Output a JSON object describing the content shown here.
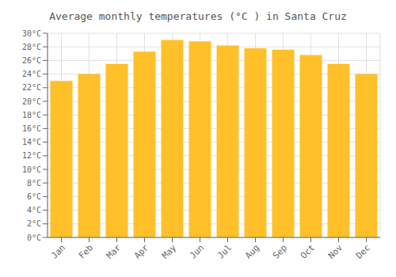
{
  "chart_data": {
    "type": "bar",
    "title": "Average monthly temperatures (°C ) in Santa Cruz",
    "categories": [
      "Jan",
      "Feb",
      "Mar",
      "Apr",
      "May",
      "Jun",
      "Jul",
      "Aug",
      "Sep",
      "Oct",
      "Nov",
      "Dec"
    ],
    "values": [
      23.0,
      24.0,
      25.5,
      27.3,
      29.0,
      28.8,
      28.2,
      27.8,
      27.6,
      26.8,
      25.5,
      24.0
    ],
    "color": "#FFC02A",
    "ylim": [
      0,
      30
    ],
    "yticks": [
      {
        "value": 0,
        "label": "0°C"
      },
      {
        "value": 2,
        "label": "2°C"
      },
      {
        "value": 4,
        "label": "4°C"
      },
      {
        "value": 6,
        "label": "6°C"
      },
      {
        "value": 8,
        "label": "8°C"
      },
      {
        "value": 10,
        "label": "10°C"
      },
      {
        "value": 12,
        "label": "12°C"
      },
      {
        "value": 14,
        "label": "14°C"
      },
      {
        "value": 16,
        "label": "16°C"
      },
      {
        "value": 18,
        "label": "18°C"
      },
      {
        "value": 20,
        "label": "20°C"
      },
      {
        "value": 22,
        "label": "22°C"
      },
      {
        "value": 24,
        "label": "24°C"
      },
      {
        "value": 26,
        "label": "26°C"
      },
      {
        "value": 28,
        "label": "28°C"
      },
      {
        "value": 30,
        "label": "30°C"
      }
    ],
    "grid": true
  }
}
